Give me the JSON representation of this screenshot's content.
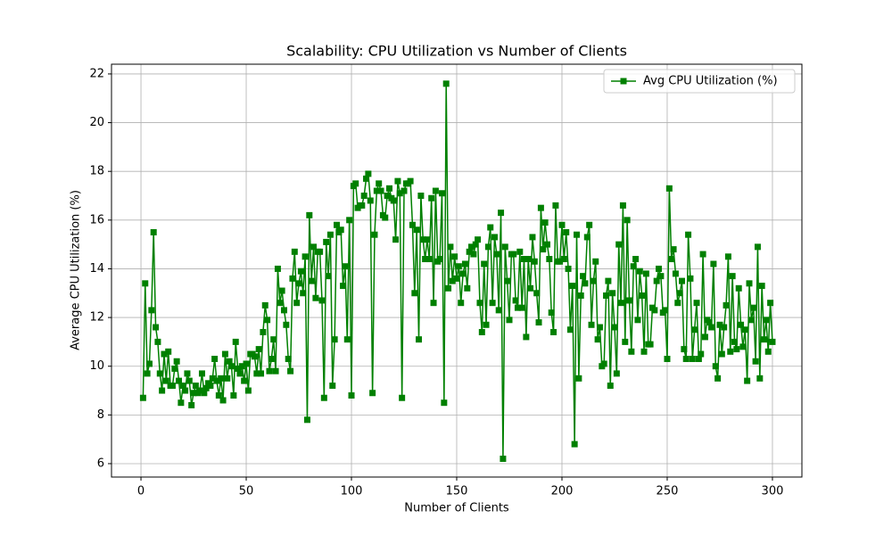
{
  "chart_data": {
    "type": "line",
    "title": "Scalability: CPU Utilization vs Number of Clients",
    "xlabel": "Number of Clients",
    "ylabel": "Average CPU Utilization (%)",
    "x": [
      1,
      2,
      3,
      4,
      5,
      6,
      7,
      8,
      9,
      10,
      11,
      12,
      13,
      14,
      15,
      16,
      17,
      18,
      19,
      20,
      21,
      22,
      23,
      24,
      25,
      26,
      27,
      28,
      29,
      30,
      31,
      32,
      33,
      34,
      35,
      36,
      37,
      38,
      39,
      40,
      41,
      42,
      43,
      44,
      45,
      46,
      47,
      48,
      49,
      50,
      51,
      52,
      53,
      54,
      55,
      56,
      57,
      58,
      59,
      60,
      61,
      62,
      63,
      64,
      65,
      66,
      67,
      68,
      69,
      70,
      71,
      72,
      73,
      74,
      75,
      76,
      77,
      78,
      79,
      80,
      81,
      82,
      83,
      84,
      85,
      86,
      87,
      88,
      89,
      90,
      91,
      92,
      93,
      94,
      95,
      96,
      97,
      98,
      99,
      100,
      101,
      102,
      103,
      104,
      105,
      106,
      107,
      108,
      109,
      110,
      111,
      112,
      113,
      114,
      115,
      116,
      117,
      118,
      119,
      120,
      121,
      122,
      123,
      124,
      125,
      126,
      127,
      128,
      129,
      130,
      131,
      132,
      133,
      134,
      135,
      136,
      137,
      138,
      139,
      140,
      141,
      142,
      143,
      144,
      145,
      146,
      147,
      148,
      149,
      150,
      151,
      152,
      153,
      154,
      155,
      156,
      157,
      158,
      159,
      160,
      161,
      162,
      163,
      164,
      165,
      166,
      167,
      168,
      169,
      170,
      171,
      172,
      173,
      174,
      175,
      176,
      177,
      178,
      179,
      180,
      181,
      182,
      183,
      184,
      185,
      186,
      187,
      188,
      189,
      190,
      191,
      192,
      193,
      194,
      195,
      196,
      197,
      198,
      199,
      200,
      201,
      202,
      203,
      204,
      205,
      206,
      207,
      208,
      209,
      210,
      211,
      212,
      213,
      214,
      215,
      216,
      217,
      218,
      219,
      220,
      221,
      222,
      223,
      224,
      225,
      226,
      227,
      228,
      229,
      230,
      231,
      232,
      233,
      234,
      235,
      236,
      237,
      238,
      239,
      240,
      241,
      242,
      243,
      244,
      245,
      246,
      247,
      248,
      249,
      250,
      251,
      252,
      253,
      254,
      255,
      256,
      257,
      258,
      259,
      260,
      261,
      262,
      263,
      264,
      265,
      266,
      267,
      268,
      269,
      270,
      271,
      272,
      273,
      274,
      275,
      276,
      277,
      278,
      279,
      280,
      281,
      282,
      283,
      284,
      285,
      286,
      287,
      288,
      289,
      290,
      291,
      292,
      293,
      294,
      295,
      296,
      297,
      298,
      299,
      300
    ],
    "series": [
      {
        "name": "Avg CPU Utilization (%)",
        "color": "#008000",
        "values": [
          8.7,
          13.4,
          9.7,
          10.1,
          12.3,
          15.5,
          11.6,
          11.0,
          9.7,
          9.0,
          10.5,
          9.4,
          10.6,
          9.2,
          9.2,
          9.9,
          10.2,
          9.4,
          8.5,
          9.2,
          9.0,
          9.7,
          9.4,
          8.4,
          8.9,
          9.2,
          8.9,
          9.0,
          9.7,
          8.9,
          9.1,
          9.3,
          9.2,
          9.5,
          10.3,
          9.4,
          8.8,
          9.5,
          8.6,
          10.5,
          9.5,
          10.2,
          10.0,
          8.8,
          11.0,
          9.9,
          9.7,
          10.0,
          9.4,
          10.1,
          9.0,
          10.5,
          10.5,
          10.4,
          9.7,
          10.7,
          9.7,
          11.4,
          12.5,
          11.9,
          9.8,
          10.3,
          11.1,
          9.8,
          14.0,
          12.6,
          13.1,
          12.3,
          11.7,
          10.3,
          9.8,
          13.6,
          14.7,
          12.6,
          13.4,
          13.9,
          13.0,
          14.5,
          7.8,
          16.2,
          13.5,
          14.9,
          12.8,
          14.7,
          14.7,
          12.7,
          8.7,
          15.1,
          13.7,
          15.4,
          9.2,
          11.1,
          15.8,
          15.5,
          15.6,
          13.3,
          14.1,
          11.1,
          16.0,
          8.8,
          17.4,
          17.5,
          16.5,
          16.6,
          16.6,
          17.0,
          17.7,
          17.9,
          16.8,
          8.9,
          15.4,
          17.2,
          17.5,
          17.2,
          16.2,
          16.1,
          17.0,
          17.3,
          16.9,
          16.8,
          15.2,
          17.6,
          17.1,
          8.7,
          17.2,
          17.5,
          17.5,
          17.6,
          15.8,
          13.0,
          15.6,
          11.1,
          17.0,
          15.2,
          14.4,
          15.2,
          14.4,
          16.9,
          12.6,
          17.2,
          14.3,
          14.4,
          17.1,
          8.5,
          21.6,
          13.2,
          14.9,
          13.5,
          14.5,
          13.6,
          14.1,
          12.6,
          13.8,
          14.2,
          13.2,
          14.7,
          14.9,
          14.6,
          15.0,
          15.2,
          12.6,
          11.4,
          14.2,
          11.7,
          14.9,
          15.7,
          12.6,
          15.3,
          14.6,
          12.3,
          16.3,
          6.2,
          14.9,
          13.5,
          11.9,
          14.6,
          14.6,
          12.7,
          12.4,
          14.7,
          12.4,
          14.4,
          11.2,
          14.4,
          13.2,
          15.3,
          14.3,
          13.0,
          11.8,
          16.5,
          14.8,
          15.9,
          15.0,
          14.4,
          12.2,
          11.4,
          16.6,
          14.3,
          14.3,
          15.8,
          14.4,
          15.5,
          14.0,
          11.5,
          13.3,
          6.8,
          15.4,
          9.5,
          12.9,
          13.7,
          13.4,
          15.3,
          15.8,
          11.7,
          13.5,
          14.3,
          11.1,
          11.6,
          10.0,
          10.1,
          12.9,
          13.5,
          9.2,
          13.0,
          11.6,
          9.7,
          15.0,
          12.6,
          16.6,
          11.0,
          16.0,
          12.7,
          10.6,
          14.1,
          14.4,
          11.9,
          13.9,
          12.9,
          10.6,
          13.8,
          10.9,
          10.9,
          12.4,
          12.3,
          13.5,
          14.0,
          13.7,
          12.2,
          12.3,
          10.3,
          17.3,
          14.4,
          14.8,
          13.8,
          12.6,
          13.0,
          13.5,
          10.7,
          10.3,
          15.4,
          13.6,
          10.3,
          11.5,
          12.6,
          10.3,
          10.5,
          14.6,
          11.2,
          11.9,
          11.8,
          11.6,
          14.2,
          10.0,
          9.5,
          11.7,
          10.5,
          11.6,
          12.5,
          14.5,
          10.6,
          13.7,
          11.0,
          10.7,
          13.2,
          11.7,
          10.8,
          11.5,
          9.4,
          13.4,
          11.9,
          12.4,
          10.2,
          14.9,
          9.5,
          13.3,
          11.1,
          11.9,
          10.6,
          12.6,
          11.0
        ]
      }
    ],
    "xlim": [
      -14,
      314
    ],
    "ylim": [
      5.45,
      22.4
    ],
    "xticks": [
      0,
      50,
      100,
      150,
      200,
      250,
      300
    ],
    "yticks": [
      6,
      8,
      10,
      12,
      14,
      16,
      18,
      20,
      22
    ],
    "grid": true,
    "legend": "upper right"
  }
}
